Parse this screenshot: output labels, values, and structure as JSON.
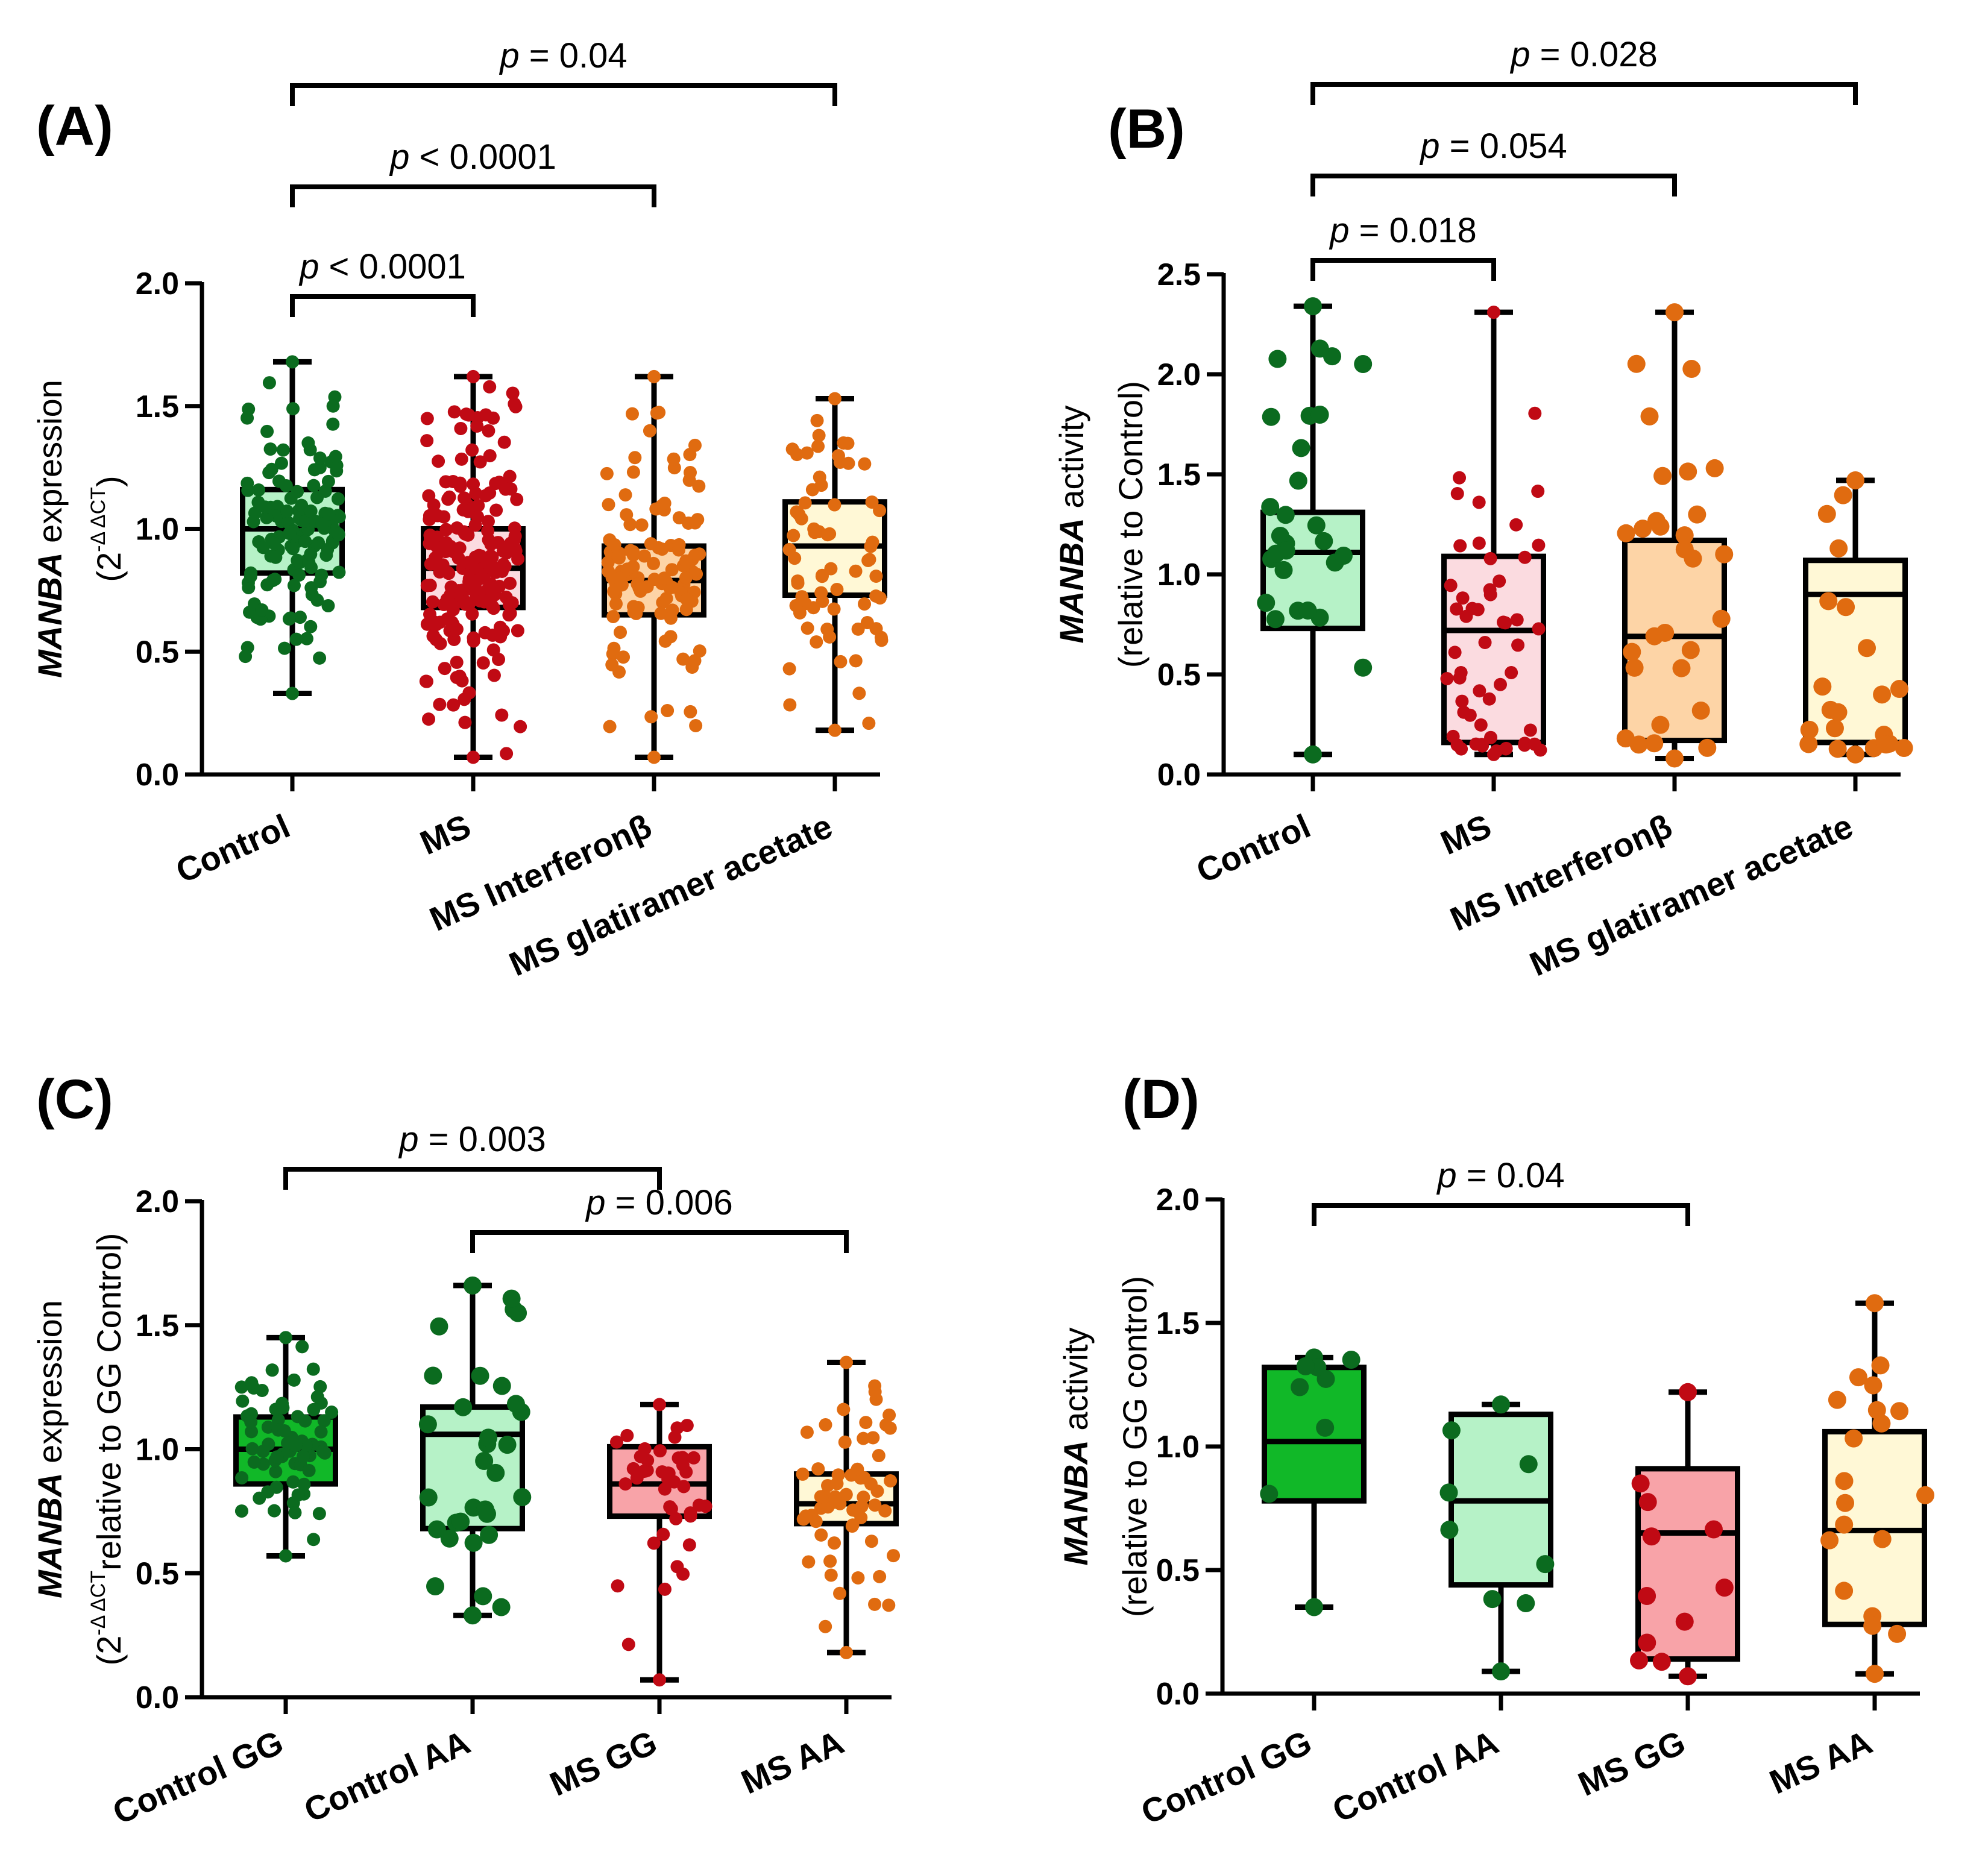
{
  "colors": {
    "green_dark": "#0b6b1f",
    "green_box": "#b6f2c7",
    "green_box_solid": "#11b828",
    "red_dark": "#c00a14",
    "red_box": "#fbdbe0",
    "red_box_mid": "#f8a3a8",
    "orange_dark": "#e06b10",
    "orange_box": "#fdd4a6",
    "yellow_box": "#fff8d6",
    "ink": "#000000"
  },
  "chart_data": [
    {
      "id": "A",
      "panel_label": "(A)",
      "type": "box",
      "ylabel_italic": "MANBA",
      "ylabel_rest": " expression",
      "ylabel2_base": "(2",
      "ylabel2_sup": "-Δ ΔCT",
      "ylabel2_end": ")",
      "ylim": [
        0,
        2.0
      ],
      "yticks": [
        0.0,
        0.5,
        1.0,
        1.5,
        2.0
      ],
      "ytick_labels": [
        "0.0",
        "0.5",
        "1.0",
        "1.5",
        "2.0"
      ],
      "categories": [
        "Control",
        "MS",
        "MS Interferonβ",
        "MS glatiramer acetate"
      ],
      "boxes": [
        {
          "min": 0.33,
          "q1": 0.82,
          "median": 1.0,
          "q3": 1.16,
          "max": 1.68,
          "fill": "#b6f2c7",
          "dot": "#0b6b1f",
          "n": 130,
          "seed": 11
        },
        {
          "min": 0.07,
          "q1": 0.68,
          "median": 0.84,
          "q3": 1.0,
          "max": 1.62,
          "fill": "#fbdbe0",
          "dot": "#c00a14",
          "n": 210,
          "seed": 23
        },
        {
          "min": 0.07,
          "q1": 0.65,
          "median": 0.79,
          "q3": 0.93,
          "max": 1.62,
          "fill": "#fdd4a6",
          "dot": "#e06b10",
          "n": 120,
          "seed": 37
        },
        {
          "min": 0.18,
          "q1": 0.73,
          "median": 0.93,
          "q3": 1.11,
          "max": 1.53,
          "fill": "#fff8d6",
          "dot": "#e06b10",
          "n": 70,
          "seed": 41
        }
      ],
      "comparisons": [
        {
          "from": 0,
          "to": 1,
          "label": "p < 0.0001",
          "level": 1
        },
        {
          "from": 0,
          "to": 2,
          "label": "p < 0.0001",
          "level": 2
        },
        {
          "from": 0,
          "to": 3,
          "label": "p = 0.04",
          "level": 3
        }
      ]
    },
    {
      "id": "B",
      "panel_label": "(B)",
      "type": "box",
      "ylabel_italic": "MANBA",
      "ylabel_rest": " activity",
      "ylabel2_base": "(relative to Control)",
      "ylabel2_sup": "",
      "ylabel2_end": "",
      "ylim": [
        0,
        2.5
      ],
      "yticks": [
        0.0,
        0.5,
        1.0,
        1.5,
        2.0,
        2.5
      ],
      "ytick_labels": [
        "0.0",
        "0.5",
        "1.0",
        "1.5",
        "2.0",
        "2.5"
      ],
      "categories": [
        "Control",
        "MS",
        "MS Interferonβ",
        "MS glatiramer acetate"
      ],
      "boxes": [
        {
          "min": 0.1,
          "q1": 0.73,
          "median": 1.11,
          "q3": 1.31,
          "max": 2.34,
          "fill": "#b6f2c7",
          "dot": "#0b6b1f",
          "n": 30,
          "seed": 5
        },
        {
          "min": 0.1,
          "q1": 0.16,
          "median": 0.72,
          "q3": 1.09,
          "max": 2.31,
          "fill": "#fbdbe0",
          "dot": "#c00a14",
          "n": 55,
          "seed": 17
        },
        {
          "min": 0.08,
          "q1": 0.17,
          "median": 0.69,
          "q3": 1.17,
          "max": 2.31,
          "fill": "#fdd4a6",
          "dot": "#e06b10",
          "n": 30,
          "seed": 29
        },
        {
          "min": 0.1,
          "q1": 0.16,
          "median": 0.9,
          "q3": 1.07,
          "max": 1.47,
          "fill": "#fff8d6",
          "dot": "#e06b10",
          "n": 22,
          "seed": 43
        }
      ],
      "comparisons": [
        {
          "from": 0,
          "to": 1,
          "label": "p = 0.018",
          "level": 1
        },
        {
          "from": 0,
          "to": 2,
          "label": "p = 0.054",
          "level": 2
        },
        {
          "from": 0,
          "to": 3,
          "label": "p = 0.028",
          "level": 3
        }
      ]
    },
    {
      "id": "C",
      "panel_label": "(C)",
      "type": "box",
      "ylabel_italic": "MANBA",
      "ylabel_rest": " expression",
      "ylabel2_base": "(2",
      "ylabel2_sup": "-Δ ΔCT",
      "ylabel2_end": "relative to GG Control)",
      "ylim": [
        0,
        2.0
      ],
      "yticks": [
        0.0,
        0.5,
        1.0,
        1.5,
        2.0
      ],
      "ytick_labels": [
        "0.0",
        "0.5",
        "1.0",
        "1.5",
        "2.0"
      ],
      "categories": [
        "Control GG",
        "Control AA",
        "MS GG",
        "MS AA"
      ],
      "boxes": [
        {
          "min": 0.57,
          "q1": 0.86,
          "median": 1.0,
          "q3": 1.13,
          "max": 1.45,
          "fill": "#11b828",
          "dot": "#0b6b1f",
          "n": 70,
          "seed": 3
        },
        {
          "min": 0.33,
          "q1": 0.68,
          "median": 1.06,
          "q3": 1.17,
          "max": 1.66,
          "fill": "#b6f2c7",
          "dot": "#0b6b1f",
          "n": 32,
          "seed": 13
        },
        {
          "min": 0.07,
          "q1": 0.73,
          "median": 0.86,
          "q3": 1.01,
          "max": 1.18,
          "fill": "#f8a3a8",
          "dot": "#c00a14",
          "n": 45,
          "seed": 19
        },
        {
          "min": 0.18,
          "q1": 0.7,
          "median": 0.78,
          "q3": 0.9,
          "max": 1.35,
          "fill": "#fff8d6",
          "dot": "#e06b10",
          "n": 65,
          "seed": 31
        }
      ],
      "comparisons": [
        {
          "from": 0,
          "to": 2,
          "label": "p = 0.003",
          "level": 2
        },
        {
          "from": 1,
          "to": 3,
          "label": "p = 0.006",
          "level": 1
        }
      ]
    },
    {
      "id": "D",
      "panel_label": "(D)",
      "type": "box",
      "ylabel_italic": "MANBA",
      "ylabel_rest": " activity",
      "ylabel2_base": "(relative to GG control)",
      "ylabel2_sup": "",
      "ylabel2_end": "",
      "ylim": [
        0,
        2.0
      ],
      "yticks": [
        0.0,
        0.5,
        1.0,
        1.5,
        2.0
      ],
      "ytick_labels": [
        "0.0",
        "0.5",
        "1.0",
        "1.5",
        "2.0"
      ],
      "categories": [
        "Control GG",
        "Control AA",
        "MS GG",
        "MS AA"
      ],
      "boxes": [
        {
          "min": 0.35,
          "q1": 0.78,
          "median": 1.02,
          "q3": 1.32,
          "max": 1.36,
          "fill": "#11b828",
          "dot": "#0b6b1f",
          "n": 9,
          "seed": 7
        },
        {
          "min": 0.09,
          "q1": 0.44,
          "median": 0.78,
          "q3": 1.13,
          "max": 1.17,
          "fill": "#b6f2c7",
          "dot": "#0b6b1f",
          "n": 9,
          "seed": 47
        },
        {
          "min": 0.07,
          "q1": 0.14,
          "median": 0.65,
          "q3": 0.91,
          "max": 1.22,
          "fill": "#f8a3a8",
          "dot": "#c00a14",
          "n": 12,
          "seed": 53
        },
        {
          "min": 0.08,
          "q1": 0.28,
          "median": 0.66,
          "q3": 1.06,
          "max": 1.58,
          "fill": "#fff8d6",
          "dot": "#e06b10",
          "n": 20,
          "seed": 59
        }
      ],
      "comparisons": [
        {
          "from": 0,
          "to": 2,
          "label": "p = 0.04",
          "level": 1
        }
      ]
    }
  ]
}
